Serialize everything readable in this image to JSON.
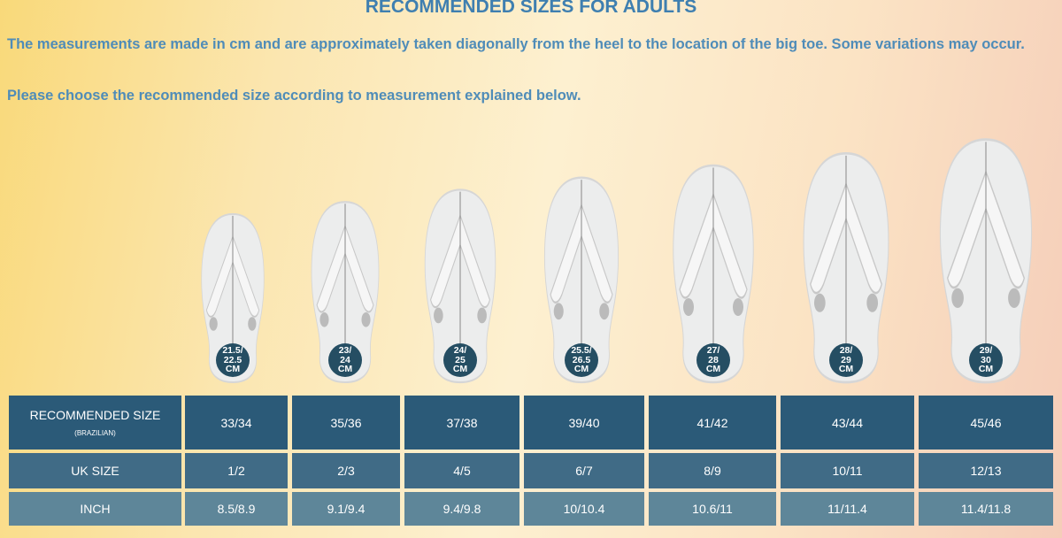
{
  "title": "RECOMMENDED SIZES FOR ADULTS",
  "intro": "The measurements are made in cm and are approximately taken diagonally from the heel to the location of the big toe. Some variations may occur.",
  "instruction": "Please choose the recommended size according to measurement explained below.",
  "sandals": [
    {
      "l1": "21.5/",
      "l2": "22.5",
      "l3": "CM"
    },
    {
      "l1": "23/",
      "l2": "24",
      "l3": "CM"
    },
    {
      "l1": "24/",
      "l2": "25",
      "l3": "CM"
    },
    {
      "l1": "25.5/",
      "l2": "26.5",
      "l3": "CM"
    },
    {
      "l1": "27/",
      "l2": "28",
      "l3": "CM"
    },
    {
      "l1": "28/",
      "l2": "29",
      "l3": "CM"
    },
    {
      "l1": "29/",
      "l2": "30",
      "l3": "CM"
    }
  ],
  "table": {
    "rows": [
      {
        "label": "RECOMMENDED SIZE",
        "sublabel": "(BRAZILIAN)",
        "values": [
          "33/34",
          "35/36",
          "37/38",
          "39/40",
          "41/42",
          "43/44",
          "45/46"
        ]
      },
      {
        "label": "UK SIZE",
        "values": [
          "1/2",
          "2/3",
          "4/5",
          "6/7",
          "8/9",
          "10/11",
          "12/13"
        ]
      },
      {
        "label": "INCH",
        "values": [
          "8.5/8.9",
          "9.1/9.4",
          "9.4/9.8",
          "10/10.4",
          "10.6/11",
          "11/11.4",
          "11.4/11.8"
        ]
      }
    ]
  },
  "colors": {
    "row1": "#2b5a78",
    "row2": "#406b86",
    "row3": "#5e8699",
    "badge": "#254e63",
    "title": "#3f7fb0"
  }
}
